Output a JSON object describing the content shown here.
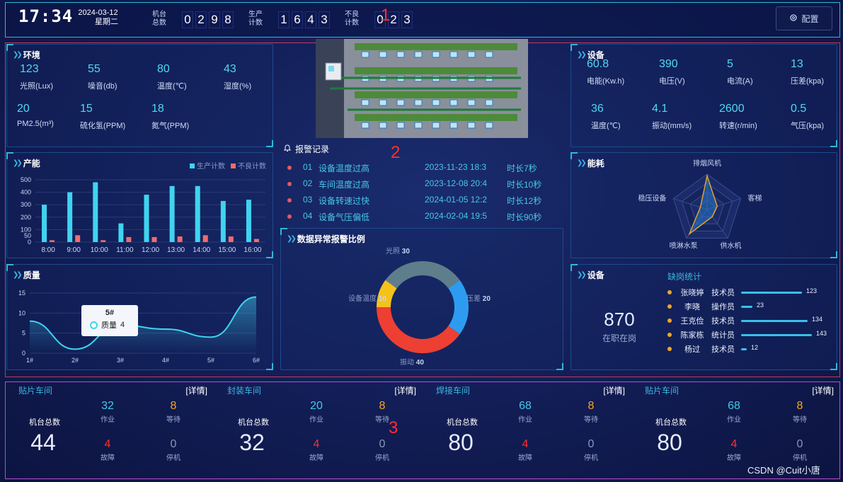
{
  "header": {
    "time": "17:34",
    "date": "2024-03-12",
    "weekday": "星期二",
    "machine_total_label_1": "机台",
    "machine_total_label_2": "总数",
    "machine_total_digits": [
      "0",
      "2",
      "9",
      "8"
    ],
    "production_label_1": "生产",
    "production_label_2": "计数",
    "production_digits": [
      "1",
      "6",
      "4",
      "3"
    ],
    "defect_label_1": "不良",
    "defect_label_2": "计数",
    "defect_digits": [
      "0",
      "2",
      "3"
    ],
    "config_label": "配置",
    "marker": "1"
  },
  "environment": {
    "title": "环境",
    "metrics": [
      {
        "value": "123",
        "label": "光照(Lux)"
      },
      {
        "value": "55",
        "label": "噪音(db)"
      },
      {
        "value": "80",
        "label": "温度(℃)"
      },
      {
        "value": "43",
        "label": "湿度(%)"
      },
      {
        "value": "20",
        "label": "PM2.5(m³)"
      },
      {
        "value": "15",
        "label": "硫化氢(PPM)"
      },
      {
        "value": "18",
        "label": "氮气(PPM)"
      }
    ]
  },
  "equipment": {
    "title": "设备",
    "metrics": [
      {
        "value": "60.8",
        "label": "电能(Kw.h)"
      },
      {
        "value": "390",
        "label": "电压(V)"
      },
      {
        "value": "5",
        "label": "电流(A)"
      },
      {
        "value": "13",
        "label": "压差(kpa)"
      },
      {
        "value": "36",
        "label": "温度(℃)"
      },
      {
        "value": "4.1",
        "label": "振动(mm/s)"
      },
      {
        "value": "2600",
        "label": "转速(r/min)"
      },
      {
        "value": "0.5",
        "label": "气压(kpa)"
      }
    ]
  },
  "capacity": {
    "title": "产能",
    "legend_production": "生产计数",
    "legend_defect": "不良计数",
    "color_production": "#3fd4f0",
    "color_defect": "#f06c6c"
  },
  "quality": {
    "title": "质量",
    "tooltip_title": "5#",
    "tooltip_label": "质量",
    "tooltip_value": "4"
  },
  "alarms": {
    "title": "报警记录",
    "marker": "2",
    "rows": [
      {
        "idx": "01",
        "text": "设备温度过高",
        "time": "2023-11-23 18:3",
        "duration": "时长7秒"
      },
      {
        "idx": "02",
        "text": "车间温度过高",
        "time": "2023-12-08 20:4",
        "duration": "时长10秒"
      },
      {
        "idx": "03",
        "text": "设备转速过快",
        "time": "2024-01-05 12:2",
        "duration": "时长12秒"
      },
      {
        "idx": "04",
        "text": "设备气压偏低",
        "time": "2024-02-04 19:5",
        "duration": "时长90秒"
      }
    ]
  },
  "anomaly": {
    "title": "数据异常报警比例"
  },
  "energy": {
    "title": "能耗"
  },
  "staff": {
    "title": "设备",
    "total": "870",
    "total_label": "在职在岗",
    "list_title": "缺岗统计",
    "rows": [
      {
        "name": "张晓婷",
        "role": "技术员",
        "count": 123
      },
      {
        "name": "李晓",
        "role": "操作员",
        "count": 23
      },
      {
        "name": "王克俭",
        "role": "技术员",
        "count": 134
      },
      {
        "name": "陈家栋",
        "role": "统计员",
        "count": 143
      },
      {
        "name": "杨过",
        "role": "技术员",
        "count": 12
      }
    ]
  },
  "workshops": {
    "marker": "3",
    "items": [
      {
        "name": "贴片车间",
        "detail": "[详情]",
        "total_label": "机台总数",
        "total": "44",
        "work": "32",
        "work_label": "作业",
        "wait": "8",
        "wait_label": "等待",
        "fault": "4",
        "fault_label": "故障",
        "idle": "0",
        "idle_label": "停机"
      },
      {
        "name": "封装车间",
        "detail": "[详情]",
        "total_label": "机台总数",
        "total": "32",
        "work": "20",
        "work_label": "作业",
        "wait": "8",
        "wait_label": "等待",
        "fault": "4",
        "fault_label": "故障",
        "idle": "0",
        "idle_label": "停机"
      },
      {
        "name": "焊接车间",
        "detail": "[详情]",
        "total_label": "机台总数",
        "total": "80",
        "work": "68",
        "work_label": "作业",
        "wait": "8",
        "wait_label": "等待",
        "fault": "4",
        "fault_label": "故障",
        "idle": "0",
        "idle_label": "停机"
      },
      {
        "name": "贴片车间",
        "detail": "[详情]",
        "total_label": "机台总数",
        "total": "80",
        "work": "68",
        "work_label": "作业",
        "wait": "8",
        "wait_label": "等待",
        "fault": "4",
        "fault_label": "故障",
        "idle": "0",
        "idle_label": "停机"
      }
    ]
  },
  "watermark": "CSDN @Cuit小唐",
  "chart_data": [
    {
      "type": "bar",
      "categories": [
        "8:00",
        "9:00",
        "10:00",
        "11:00",
        "12:00",
        "13:00",
        "14:00",
        "15:00",
        "16:00"
      ],
      "series": [
        {
          "name": "生产计数",
          "values": [
            300,
            400,
            480,
            150,
            380,
            450,
            450,
            330,
            340
          ]
        },
        {
          "name": "不良计数",
          "values": [
            15,
            55,
            15,
            40,
            40,
            45,
            55,
            45,
            25
          ]
        }
      ],
      "yticks": [
        0,
        50,
        100,
        200,
        300,
        400,
        500
      ],
      "ylim": [
        0,
        500
      ]
    },
    {
      "type": "line",
      "categories": [
        "1#",
        "2#",
        "3#",
        "4#",
        "5#",
        "6#"
      ],
      "series": [
        {
          "name": "质量",
          "values": [
            8,
            1,
            7,
            6,
            4,
            14
          ]
        }
      ],
      "yticks": [
        0,
        5,
        10,
        15
      ],
      "ylim": [
        0,
        15
      ]
    },
    {
      "type": "pie",
      "slices": [
        {
          "label": "光照",
          "value": 30,
          "color": "#5e7e8c"
        },
        {
          "label": "压差",
          "value": 20,
          "color": "#2d9cf0"
        },
        {
          "label": "振动",
          "value": 40,
          "color": "#ee3f33"
        },
        {
          "label": "设备温度",
          "value": 10,
          "color": "#f5c21b"
        }
      ]
    },
    {
      "type": "radar",
      "axes": [
        "排烟风机",
        "客梯",
        "供水机",
        "喷淋水泵",
        "稳压设备"
      ],
      "values": [
        0.95,
        0.3,
        0.25,
        0.85,
        0.2
      ]
    }
  ]
}
